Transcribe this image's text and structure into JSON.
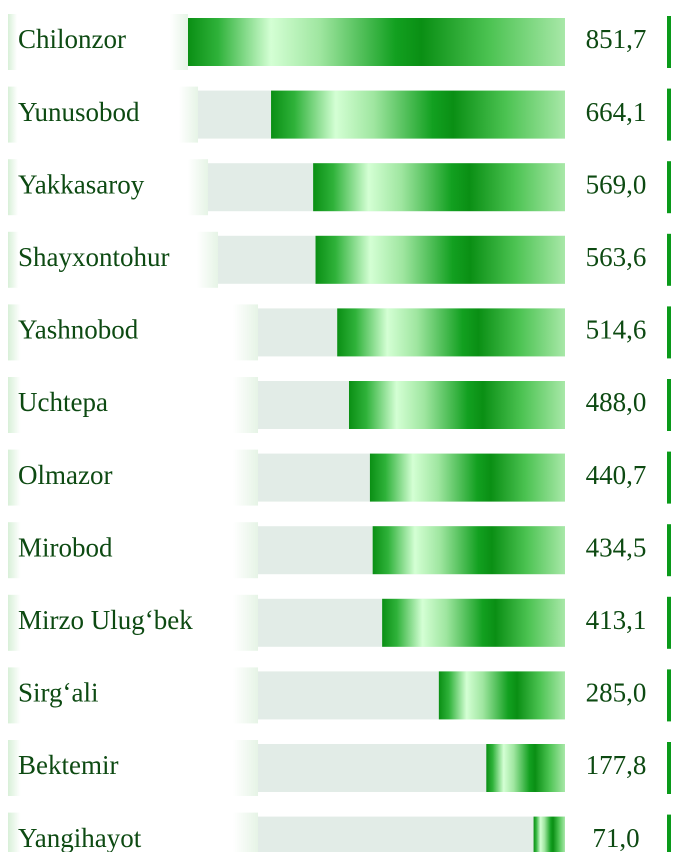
{
  "chart_data": {
    "type": "bar",
    "categories": [
      "Chilonzor",
      "Yunusobod",
      "Yakkasaroy",
      "Shayxontohur",
      "Yashnobod",
      "Uchtepa",
      "Olmazor",
      "Mirobod",
      "Mirzo Ulug‘bek",
      "Sirg‘ali",
      "Bektemir",
      "Yangihayot"
    ],
    "values": [
      851.7,
      664.1,
      569.0,
      563.6,
      514.6,
      488.0,
      440.7,
      434.5,
      413.1,
      285.0,
      177.8,
      71.0
    ],
    "value_labels": [
      "851,7",
      "664,1",
      "569,0",
      "563,6",
      "514,6",
      "488,0",
      "440,7",
      "434,5",
      "413,1",
      "285,0",
      "177,8",
      "71,0"
    ],
    "color": "#0a9a1a"
  }
}
